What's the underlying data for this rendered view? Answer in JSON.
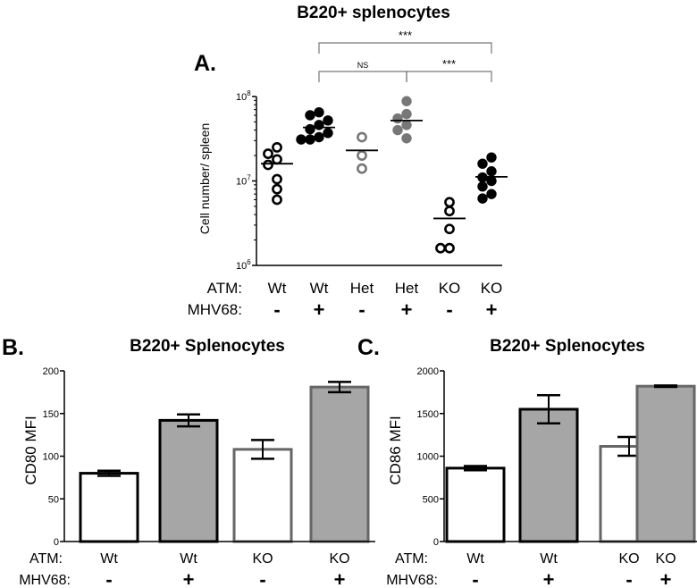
{
  "chart_data": [
    {
      "panel": "A.",
      "type": "scatter",
      "title": "B220+ splenocytes",
      "ylabel": "Cell number/ spleen",
      "yscale": "log",
      "ylim": [
        1000000,
        100000000
      ],
      "yticks": [
        {
          "base": "10",
          "exp": "6",
          "value": 1000000
        },
        {
          "base": "10",
          "exp": "7",
          "value": 10000000
        },
        {
          "base": "10",
          "exp": "8",
          "value": 100000000
        }
      ],
      "row_labels": [
        "ATM:",
        "MHV68:"
      ],
      "groups": [
        {
          "atm": "Wt",
          "mhv68": "-",
          "fill": "open",
          "color": "#000000",
          "mean": 16000000,
          "points": [
            25000000,
            21000000,
            18000000,
            15500000,
            10500000,
            8000000,
            6000000
          ]
        },
        {
          "atm": "Wt",
          "mhv68": "+",
          "fill": "filled",
          "color": "#000000",
          "mean": 43000000,
          "points": [
            65000000,
            60000000,
            52000000,
            46000000,
            41000000,
            37000000,
            33000000,
            31000000,
            31000000
          ]
        },
        {
          "atm": "Het",
          "mhv68": "-",
          "fill": "open",
          "color": "#777777",
          "mean": 23000000,
          "points": [
            33000000,
            20000000,
            14000000
          ]
        },
        {
          "atm": "Het",
          "mhv68": "+",
          "fill": "filled",
          "color": "#777777",
          "mean": 52000000,
          "points": [
            88000000,
            62000000,
            55000000,
            46000000,
            40000000,
            32000000
          ]
        },
        {
          "atm": "KO",
          "mhv68": "-",
          "fill": "open",
          "color": "#000000",
          "mean": 3600000,
          "points": [
            5600000,
            4400000,
            2700000,
            1600000,
            1600000
          ]
        },
        {
          "atm": "KO",
          "mhv68": "+",
          "fill": "filled",
          "color": "#000000",
          "mean": 11200000,
          "points": [
            19000000,
            16000000,
            13000000,
            11000000,
            10000000,
            8600000,
            7000000,
            6200000
          ]
        }
      ],
      "significance": [
        {
          "from": 1,
          "to": 5,
          "label": "***"
        },
        {
          "from": 1,
          "to": 3,
          "label": "NS"
        },
        {
          "from": 3,
          "to": 5,
          "label": "***"
        }
      ]
    },
    {
      "panel": "B.",
      "type": "bar",
      "title": "B220+ Splenocytes",
      "ylabel": "CD80 MFI",
      "ylim": [
        0,
        200
      ],
      "yticks": [
        0,
        50,
        100,
        150,
        200
      ],
      "row_labels": [
        "ATM:",
        "MHV68:"
      ],
      "categories": [
        {
          "atm": "Wt",
          "mhv68": "-"
        },
        {
          "atm": "Wt",
          "mhv68": "+"
        },
        {
          "atm": "KO",
          "mhv68": "-"
        },
        {
          "atm": "KO",
          "mhv68": "+"
        }
      ],
      "values": [
        80,
        142,
        108,
        181
      ],
      "errors": [
        3,
        7,
        11,
        6
      ],
      "fills": [
        "#ffffff",
        "#a6a6a6",
        "#ffffff",
        "#a6a6a6"
      ],
      "strokes": [
        "#000000",
        "#000000",
        "#666666",
        "#666666"
      ]
    },
    {
      "panel": "C.",
      "type": "bar",
      "title": "B220+ Splenocytes",
      "ylabel": "CD86 MFI",
      "ylim": [
        0,
        2000
      ],
      "yticks": [
        0,
        500,
        1000,
        1500,
        2000
      ],
      "row_labels": [
        "ATM:",
        "MHV68:"
      ],
      "categories": [
        {
          "atm": "Wt",
          "mhv68": "-"
        },
        {
          "atm": "Wt",
          "mhv68": "+"
        },
        {
          "atm": "KO",
          "mhv68": "-"
        },
        {
          "atm": "KO",
          "mhv68": "+"
        }
      ],
      "values": [
        860,
        1550,
        1115,
        1820
      ],
      "errors": [
        25,
        165,
        110,
        8
      ],
      "fills": [
        "#ffffff",
        "#a6a6a6",
        "#ffffff",
        "#a6a6a6"
      ],
      "strokes": [
        "#000000",
        "#000000",
        "#666666",
        "#666666"
      ]
    }
  ]
}
